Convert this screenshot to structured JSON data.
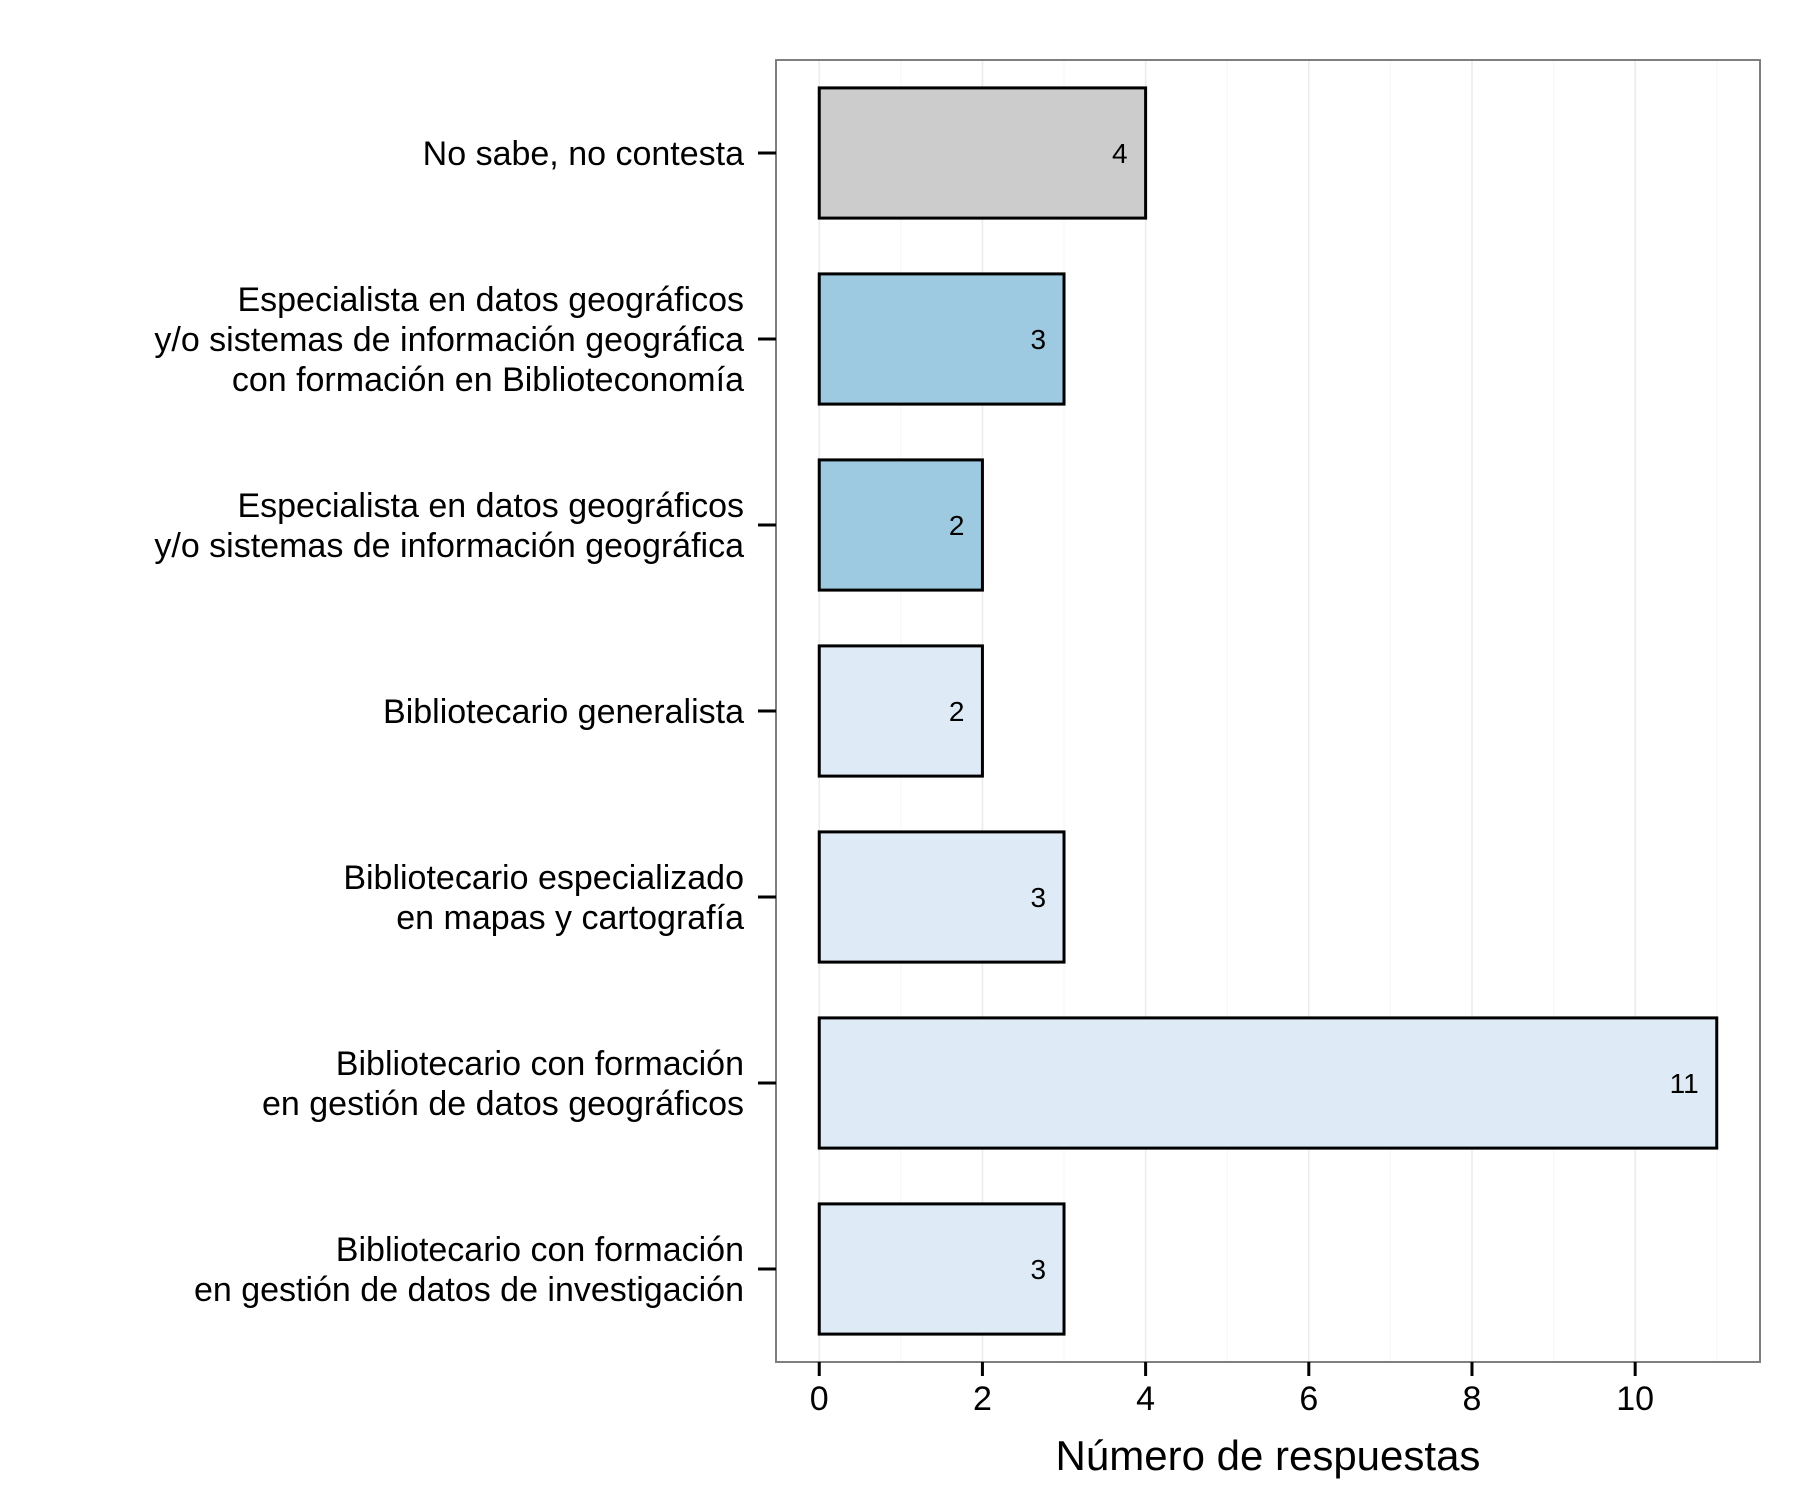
{
  "chart_data": {
    "type": "bar",
    "orientation": "horizontal",
    "categories": [
      [
        "No sabe, no contesta"
      ],
      [
        "Especialista en datos geográficos",
        "y/o sistemas de información geográfica",
        "con formación en Biblioteconomía"
      ],
      [
        "Especialista en datos geográficos",
        "y/o sistemas de información geográfica"
      ],
      [
        "Bibliotecario generalista"
      ],
      [
        "Bibliotecario especializado",
        "en mapas y cartografía"
      ],
      [
        "Bibliotecario con formación",
        "en gestión de datos geográficos"
      ],
      [
        "Bibliotecario con formación",
        "en gestión de datos de investigación"
      ]
    ],
    "values": [
      4,
      3,
      2,
      2,
      3,
      11,
      3
    ],
    "data_labels": [
      "4",
      "3",
      "2",
      "2",
      "3",
      "11",
      "3"
    ],
    "bar_colors": [
      "#cccccc",
      "#9ecae1",
      "#9ecae1",
      "#deebf7",
      "#deebf7",
      "#deebf7",
      "#deebf7"
    ],
    "xlabel": "Número de respuestas",
    "ylabel": "",
    "xlim": [
      -0.53,
      11.53
    ],
    "x_ticks": [
      0,
      2,
      4,
      6,
      8,
      10
    ],
    "x_tick_labels": [
      "0",
      "2",
      "4",
      "6",
      "8",
      "10"
    ],
    "grid": true,
    "legend": "none"
  }
}
